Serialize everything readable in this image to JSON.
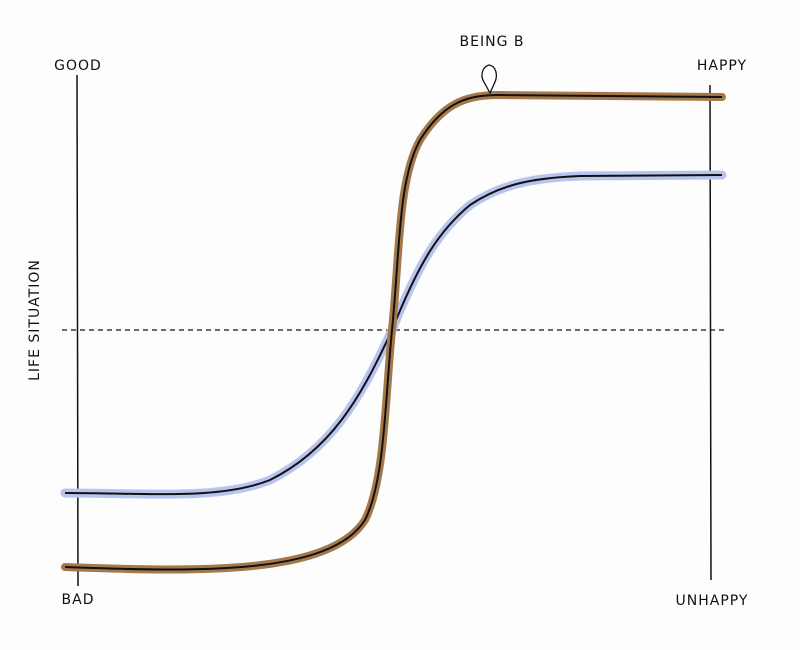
{
  "labels": {
    "top_left": "GOOD",
    "bottom_left": "BAD",
    "y_axis": "LIFE SITUATION",
    "top_right": "HAPPY",
    "bottom_right": "UNHAPPY",
    "marker": "BEING B"
  }
}
